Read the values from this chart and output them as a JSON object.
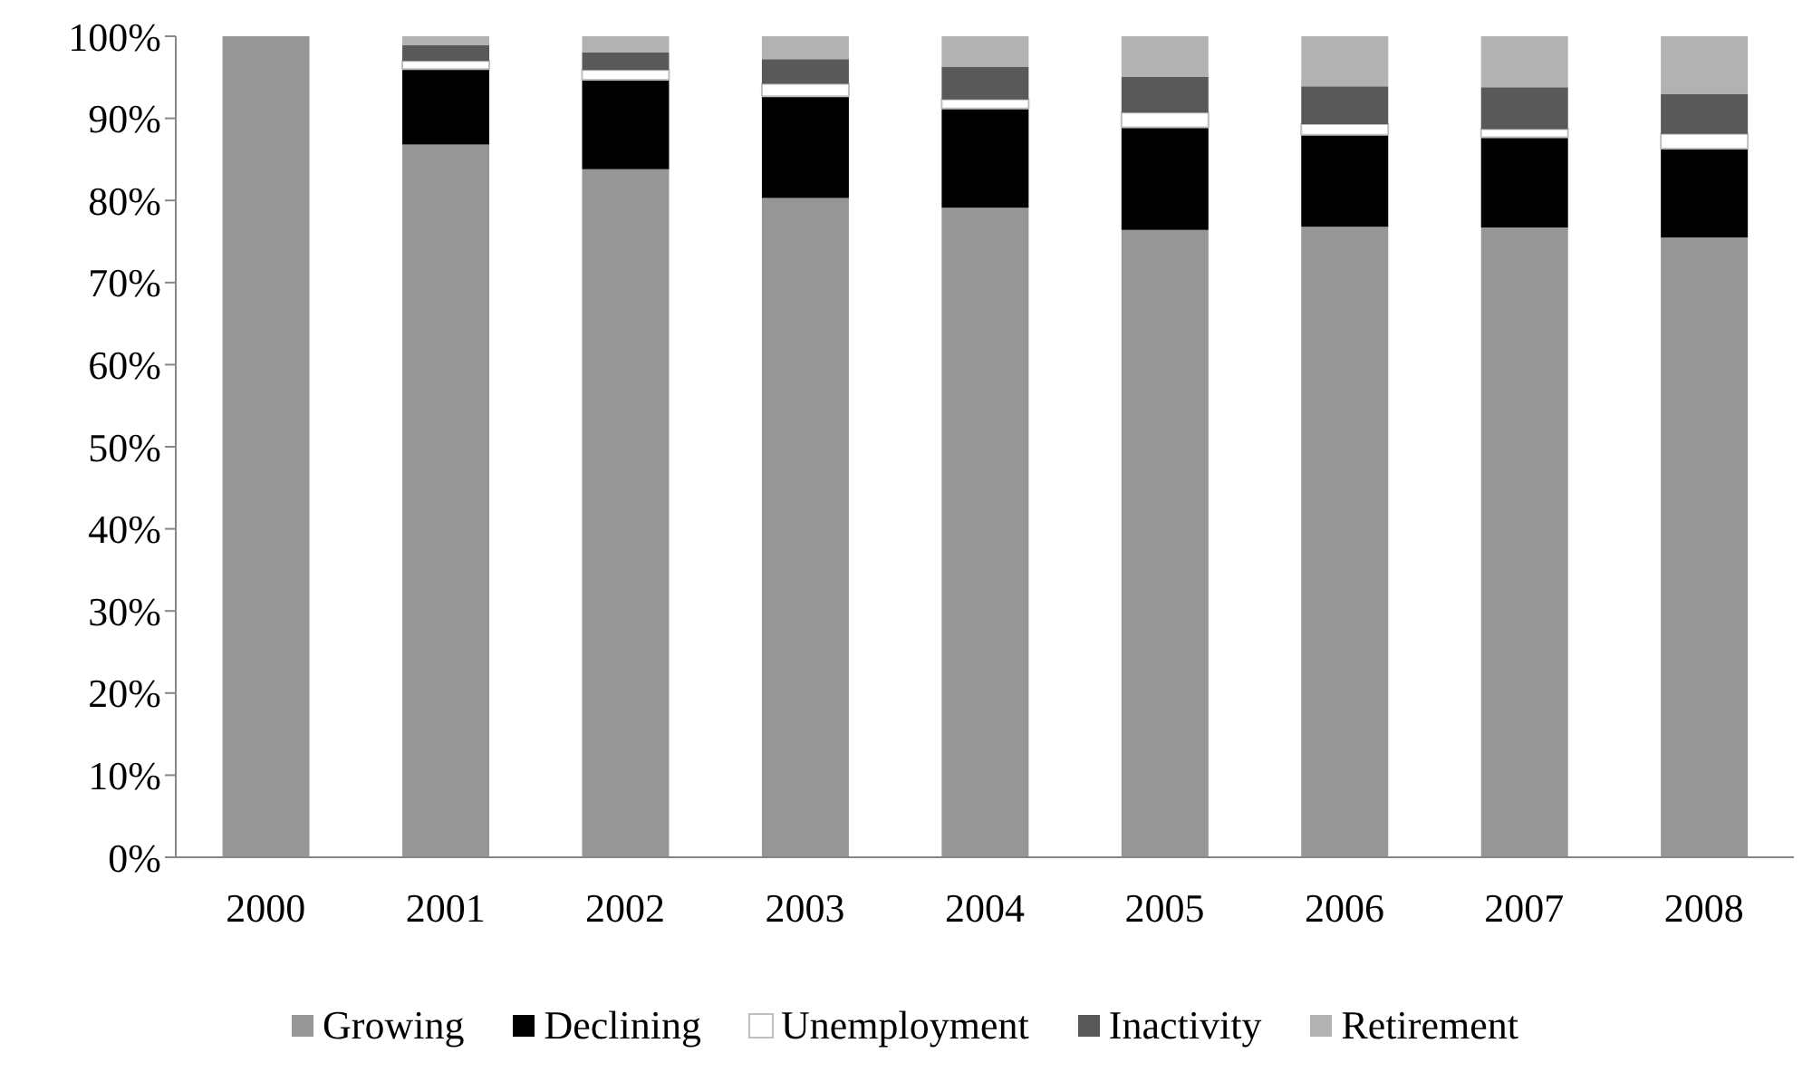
{
  "chart_data": {
    "type": "bar",
    "stacked": true,
    "categories": [
      "2000",
      "2001",
      "2002",
      "2003",
      "2004",
      "2005",
      "2006",
      "2007",
      "2008"
    ],
    "series": [
      {
        "name": "Growing",
        "color": "#969696",
        "values": [
          100,
          86.8,
          83.8,
          80.3,
          79.1,
          76.4,
          76.8,
          76.7,
          75.5
        ]
      },
      {
        "name": "Declining",
        "color": "#000000",
        "values": [
          0,
          9.2,
          10.9,
          12.4,
          12.1,
          12.5,
          11.2,
          11.0,
          10.8
        ]
      },
      {
        "name": "Unemployment",
        "color": "#ffffff",
        "values": [
          0,
          1.0,
          1.2,
          1.5,
          1.1,
          1.8,
          1.3,
          1.0,
          1.8
        ]
      },
      {
        "name": "Inactivity",
        "color": "#595959",
        "values": [
          0,
          1.9,
          2.1,
          3.0,
          4.0,
          4.4,
          4.6,
          5.1,
          4.9
        ]
      },
      {
        "name": "Retirement",
        "color": "#b2b2b2",
        "values": [
          0,
          1.1,
          2.0,
          2.8,
          3.7,
          4.9,
          6.1,
          6.2,
          7.0
        ]
      }
    ],
    "ylim": [
      0,
      100
    ],
    "yticks": [
      {
        "value": 0,
        "label": "0%"
      },
      {
        "value": 10,
        "label": "10%"
      },
      {
        "value": 20,
        "label": "20%"
      },
      {
        "value": 30,
        "label": "30%"
      },
      {
        "value": 40,
        "label": "40%"
      },
      {
        "value": 50,
        "label": "50%"
      },
      {
        "value": 60,
        "label": "60%"
      },
      {
        "value": 70,
        "label": "70%"
      },
      {
        "value": 80,
        "label": "80%"
      },
      {
        "value": 90,
        "label": "90%"
      },
      {
        "value": 100,
        "label": "100%"
      }
    ],
    "grid": false,
    "legend": "bottom"
  }
}
